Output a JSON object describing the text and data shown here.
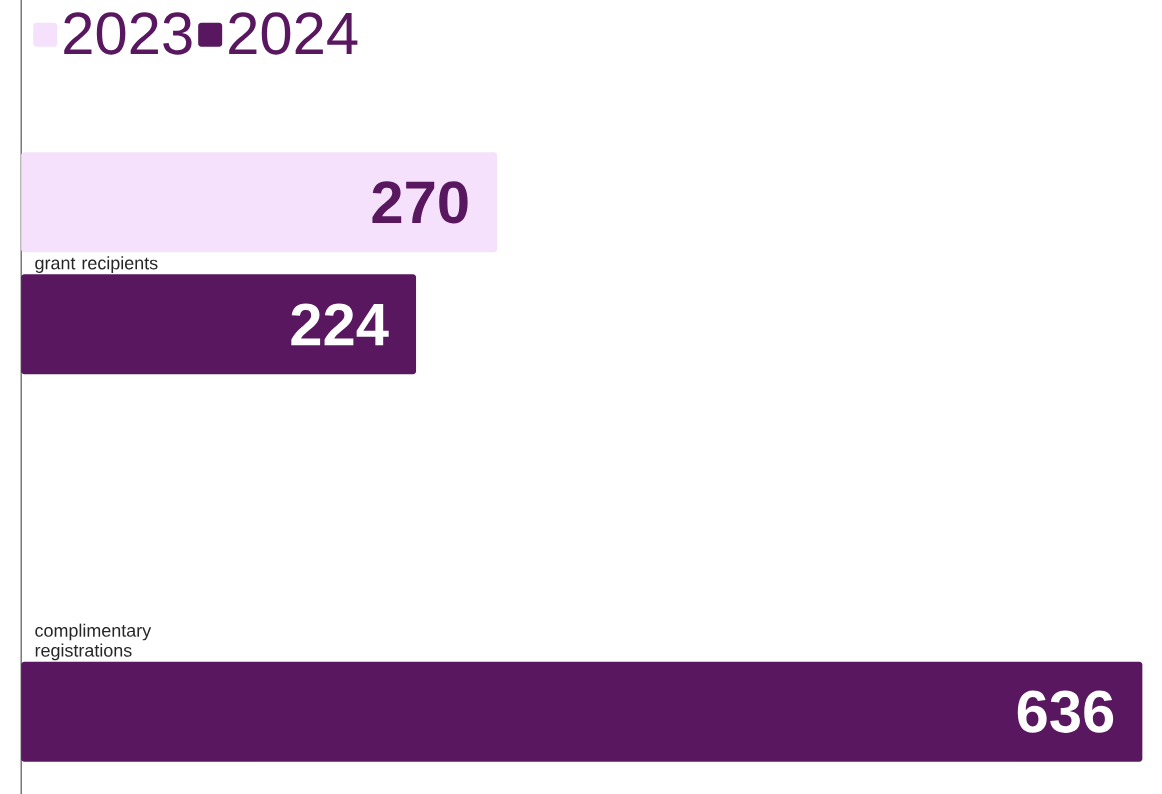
{
  "chart_data": {
    "type": "bar",
    "orientation": "horizontal",
    "categories": [
      "grant recipients",
      "complimentary registrations"
    ],
    "series": [
      {
        "name": "2023",
        "color": "#f5e1fb",
        "values": [
          270,
          null
        ]
      },
      {
        "name": "2024",
        "color": "#58175f",
        "values": [
          224,
          636
        ]
      }
    ],
    "data_labels": true,
    "legend": "top left"
  }
}
